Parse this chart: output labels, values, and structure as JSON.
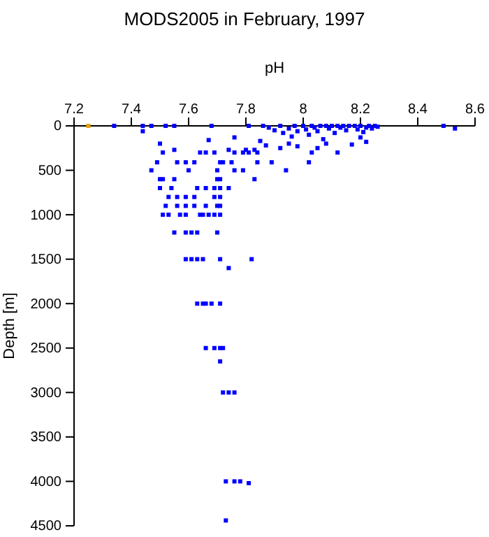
{
  "chart_data": {
    "type": "scatter",
    "title": "MODS2005 in February, 1997",
    "xlabel": "pH",
    "ylabel": "Depth [m]",
    "xlim": [
      7.2,
      8.6
    ],
    "xticks": [
      7.2,
      7.4,
      7.6,
      7.8,
      8,
      8.2,
      8.4,
      8.6
    ],
    "ylim": [
      4500,
      0
    ],
    "yticks": [
      0,
      500,
      1000,
      1500,
      2000,
      2500,
      3000,
      3500,
      4000,
      4500
    ],
    "marker": "square",
    "grid": false,
    "series": [
      {
        "color": "#e8a000",
        "x": [
          7.25
        ],
        "values": [
          0
        ]
      },
      {
        "color": "#0000ff",
        "x": [
          7.34,
          7.44,
          7.47,
          7.52,
          7.55,
          7.68,
          7.81,
          8.49,
          8.53,
          7.44,
          7.5,
          7.67,
          7.76,
          7.55,
          7.74,
          7.8,
          7.83,
          7.51,
          7.64,
          7.66,
          7.69,
          7.76,
          7.79,
          7.81,
          7.84,
          8.03,
          8.12,
          7.49,
          7.56,
          7.59,
          7.62,
          7.71,
          7.72,
          7.75,
          7.84,
          7.89,
          8.02,
          7.47,
          7.6,
          7.7,
          7.76,
          7.79,
          7.94,
          7.5,
          7.51,
          7.55,
          7.7,
          7.71,
          7.83,
          7.5,
          7.54,
          7.63,
          7.66,
          7.69,
          7.71,
          7.74,
          7.53,
          7.56,
          7.59,
          7.62,
          7.69,
          7.71,
          7.52,
          7.56,
          7.59,
          7.62,
          7.66,
          7.7,
          7.71,
          7.51,
          7.53,
          7.57,
          7.59,
          7.64,
          7.65,
          7.67,
          7.69,
          7.71,
          7.55,
          7.59,
          7.61,
          7.63,
          7.7,
          7.59,
          7.61,
          7.63,
          7.65,
          7.71,
          7.82,
          7.74,
          7.63,
          7.65,
          7.66,
          7.68,
          7.71,
          7.66,
          7.69,
          7.71,
          7.72,
          7.71,
          7.72,
          7.74,
          7.76,
          7.73,
          7.76,
          7.78,
          7.81,
          7.73,
          7.86,
          7.88,
          7.9,
          7.92,
          7.93,
          7.95,
          7.96,
          7.97,
          7.98,
          8,
          8.01,
          8.02,
          8.03,
          8.04,
          8.05,
          8.06,
          8.07,
          8.08,
          8.09,
          8.1,
          8.11,
          8.12,
          8.13,
          8.14,
          8.15,
          8.16,
          8.18,
          8.19,
          8.2,
          8.21,
          8.22,
          8.23,
          8.24,
          8.25,
          8.26,
          7.85,
          7.87,
          7.92,
          7.95,
          7.98,
          8.05,
          8.08,
          8.2,
          8.22,
          8.17
        ],
        "values": [
          0,
          0,
          0,
          0,
          0,
          0,
          0,
          0,
          30,
          60,
          200,
          160,
          130,
          270,
          270,
          270,
          270,
          300,
          300,
          300,
          300,
          300,
          300,
          300,
          300,
          300,
          300,
          410,
          410,
          410,
          410,
          410,
          410,
          410,
          410,
          410,
          410,
          500,
          500,
          500,
          500,
          500,
          500,
          600,
          600,
          600,
          600,
          600,
          600,
          700,
          700,
          700,
          700,
          700,
          700,
          700,
          800,
          800,
          800,
          800,
          800,
          800,
          900,
          900,
          900,
          900,
          900,
          900,
          900,
          1000,
          1000,
          1000,
          1000,
          1000,
          1000,
          1000,
          1000,
          1000,
          1200,
          1200,
          1200,
          1200,
          1200,
          1500,
          1500,
          1500,
          1500,
          1500,
          1500,
          1600,
          2000,
          2000,
          2000,
          2000,
          2000,
          2500,
          2500,
          2500,
          2500,
          2650,
          3000,
          3000,
          3000,
          4000,
          4000,
          4000,
          4020,
          4440,
          0,
          20,
          50,
          0,
          80,
          30,
          120,
          0,
          60,
          0,
          40,
          100,
          0,
          20,
          60,
          0,
          150,
          0,
          30,
          0,
          80,
          0,
          20,
          0,
          50,
          0,
          0,
          40,
          0,
          70,
          20,
          0,
          30,
          0,
          10,
          170,
          220,
          250,
          200,
          230,
          250,
          200,
          130,
          180,
          210
        ]
      }
    ]
  }
}
